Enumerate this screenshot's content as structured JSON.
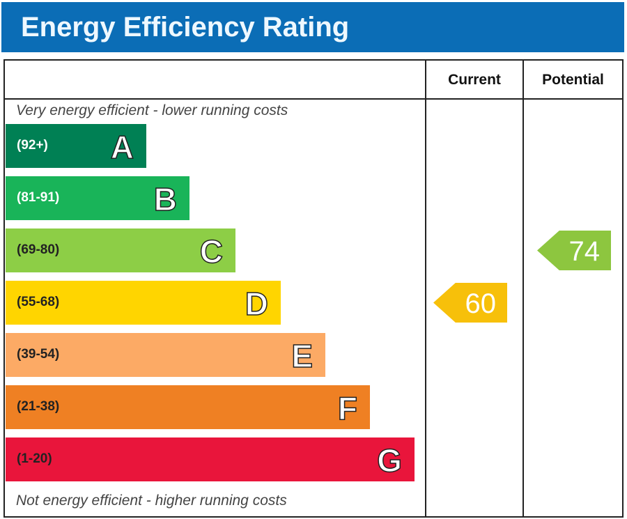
{
  "title": "Energy Efficiency Rating",
  "chart_data": {
    "type": "bar",
    "title": "Energy Efficiency Rating",
    "columns": [
      "Current",
      "Potential"
    ],
    "top_note": "Very energy efficient - lower running costs",
    "bottom_note": "Not energy efficient - higher running costs",
    "bands": [
      {
        "range": "(92+)",
        "letter": "A",
        "color": "#008054",
        "text_color": "#ffffff",
        "min": 92,
        "max": 100
      },
      {
        "range": "(81-91)",
        "letter": "B",
        "color": "#19b459",
        "text_color": "#ffffff",
        "min": 81,
        "max": 91
      },
      {
        "range": "(69-80)",
        "letter": "C",
        "color": "#8dce46",
        "text_color": "#222222",
        "min": 69,
        "max": 80
      },
      {
        "range": "(55-68)",
        "letter": "D",
        "color": "#ffd500",
        "text_color": "#222222",
        "min": 55,
        "max": 68
      },
      {
        "range": "(39-54)",
        "letter": "E",
        "color": "#fcaa65",
        "text_color": "#222222",
        "min": 39,
        "max": 54
      },
      {
        "range": "(21-38)",
        "letter": "F",
        "color": "#ef8023",
        "text_color": "#222222",
        "min": 21,
        "max": 38
      },
      {
        "range": "(1-20)",
        "letter": "G",
        "color": "#e9153b",
        "text_color": "#222222",
        "min": 1,
        "max": 20
      }
    ],
    "current": {
      "value": 60,
      "band": "D",
      "color": "#f7c00a"
    },
    "potential": {
      "value": 74,
      "band": "C",
      "color": "#8dc63f"
    }
  }
}
